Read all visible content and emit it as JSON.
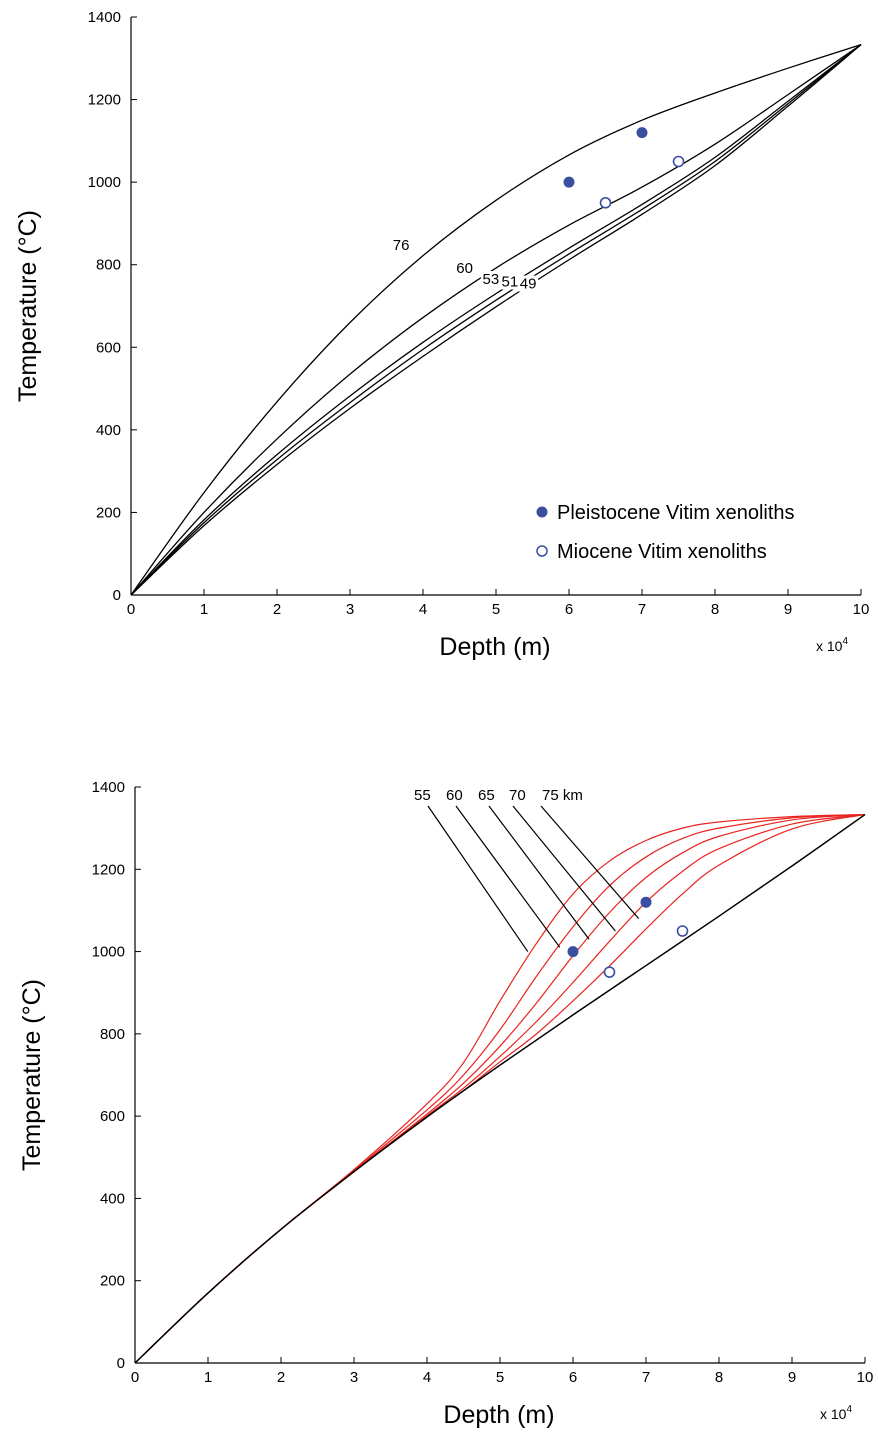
{
  "chart_data": [
    {
      "type": "line",
      "xlabel": "Depth (m)",
      "ylabel": "Temperature (°C)",
      "xlim": [
        0,
        100000
      ],
      "ylim": [
        0,
        1400
      ],
      "x_ticks": [
        "0",
        "1",
        "2",
        "3",
        "4",
        "5",
        "6",
        "7",
        "8",
        "9",
        "10"
      ],
      "y_ticks": [
        "0",
        "200",
        "400",
        "600",
        "800",
        "1000",
        "1200",
        "1400"
      ],
      "x_multiplier": {
        "base": "x 10",
        "exponent": "4"
      },
      "grid": false,
      "legend_position": "bottom-right",
      "series": [
        {
          "label": "76",
          "x": [
            0,
            10000,
            20000,
            30000,
            40000,
            50000,
            60000,
            70000,
            80000,
            90000,
            100000
          ],
          "y": [
            0,
            248,
            468,
            660,
            822,
            956,
            1066,
            1150,
            1216,
            1276,
            1333
          ]
        },
        {
          "label": "60",
          "x": [
            0,
            10000,
            20000,
            30000,
            40000,
            50000,
            60000,
            70000,
            80000,
            90000,
            100000
          ],
          "y": [
            0,
            200,
            378,
            535,
            672,
            792,
            896,
            988,
            1092,
            1212,
            1333
          ]
        },
        {
          "label": "53",
          "x": [
            0,
            10000,
            20000,
            30000,
            40000,
            50000,
            60000,
            70000,
            80000,
            90000,
            100000
          ],
          "y": [
            0,
            182,
            340,
            482,
            612,
            730,
            840,
            946,
            1060,
            1196,
            1333
          ]
        },
        {
          "label": "51",
          "x": [
            0,
            10000,
            20000,
            30000,
            40000,
            50000,
            60000,
            70000,
            80000,
            90000,
            100000
          ],
          "y": [
            0,
            175,
            328,
            466,
            595,
            714,
            826,
            934,
            1050,
            1190,
            1333
          ]
        },
        {
          "label": "49",
          "x": [
            0,
            10000,
            20000,
            30000,
            40000,
            50000,
            60000,
            70000,
            80000,
            90000,
            100000
          ],
          "y": [
            0,
            168,
            316,
            452,
            578,
            698,
            812,
            922,
            1040,
            1184,
            1333
          ]
        }
      ],
      "points": [
        {
          "name": "Pleistocene Vitim xenoliths",
          "style": "filled",
          "color": "#3b4fa0",
          "x": [
            60000,
            70000
          ],
          "y": [
            1000,
            1120
          ]
        },
        {
          "name": "Miocene Vitim xenoliths",
          "style": "open",
          "color": "#3b4fa0",
          "x": [
            65000,
            75000
          ],
          "y": [
            950,
            1050
          ]
        }
      ],
      "legend": [
        {
          "label": "Pleistocene Vitim xenoliths",
          "marker": "filled"
        },
        {
          "label": "Miocene Vitim xenoliths",
          "marker": "open"
        }
      ]
    },
    {
      "type": "line",
      "xlabel": "Depth (m)",
      "ylabel": "Temperature (°C)",
      "xlim": [
        0,
        100000
      ],
      "ylim": [
        0,
        1400
      ],
      "x_ticks": [
        "0",
        "1",
        "2",
        "3",
        "4",
        "5",
        "6",
        "7",
        "8",
        "9",
        "10"
      ],
      "y_ticks": [
        "0",
        "200",
        "400",
        "600",
        "800",
        "1000",
        "1200",
        "1400"
      ],
      "x_multiplier": {
        "base": "x 10",
        "exponent": "4"
      },
      "grid": false,
      "curve_labels": [
        "55",
        "60",
        "65",
        "70",
        "75 km"
      ],
      "colors": {
        "curves": "#e8231e",
        "baseline": "#000000"
      },
      "baseline": {
        "x": [
          0,
          10000,
          20000,
          30000,
          40000,
          50000,
          60000,
          70000,
          80000,
          90000,
          100000
        ],
        "y": [
          0,
          170,
          325,
          465,
          598,
          724,
          846,
          966,
          1086,
          1208,
          1333
        ]
      },
      "series": [
        {
          "label": "55",
          "x": [
            0,
            10000,
            20000,
            30000,
            40000,
            45000,
            50000,
            55000,
            60000,
            65000,
            70000,
            75000,
            80000,
            90000,
            100000
          ],
          "y": [
            0,
            170,
            325,
            470,
            630,
            730,
            880,
            1020,
            1140,
            1220,
            1270,
            1300,
            1315,
            1328,
            1333
          ]
        },
        {
          "label": "60",
          "x": [
            0,
            10000,
            20000,
            30000,
            40000,
            45000,
            50000,
            55000,
            60000,
            65000,
            70000,
            75000,
            80000,
            90000,
            100000
          ],
          "y": [
            0,
            170,
            325,
            468,
            615,
            700,
            810,
            940,
            1060,
            1160,
            1230,
            1275,
            1300,
            1325,
            1333
          ]
        },
        {
          "label": "65",
          "x": [
            0,
            10000,
            20000,
            30000,
            40000,
            45000,
            50000,
            55000,
            60000,
            65000,
            70000,
            75000,
            80000,
            90000,
            100000
          ],
          "y": [
            0,
            170,
            325,
            466,
            605,
            680,
            770,
            875,
            990,
            1095,
            1180,
            1240,
            1280,
            1320,
            1333
          ]
        },
        {
          "label": "70",
          "x": [
            0,
            10000,
            20000,
            30000,
            40000,
            45000,
            50000,
            55000,
            60000,
            65000,
            70000,
            75000,
            80000,
            90000,
            100000
          ],
          "y": [
            0,
            170,
            325,
            465,
            601,
            668,
            745,
            830,
            925,
            1025,
            1120,
            1195,
            1250,
            1310,
            1333
          ]
        },
        {
          "label": "75 km",
          "x": [
            0,
            10000,
            20000,
            30000,
            40000,
            45000,
            50000,
            55000,
            60000,
            65000,
            70000,
            75000,
            80000,
            90000,
            100000
          ],
          "y": [
            0,
            170,
            325,
            465,
            599,
            662,
            732,
            800,
            880,
            965,
            1055,
            1140,
            1210,
            1298,
            1333
          ]
        }
      ],
      "points": [
        {
          "name": "Pleistocene Vitim xenoliths",
          "style": "filled",
          "color": "#3b4fa0",
          "x": [
            60000,
            70000
          ],
          "y": [
            1000,
            1120
          ]
        },
        {
          "name": "Miocene Vitim xenoliths",
          "style": "open",
          "color": "#3b4fa0",
          "x": [
            65000,
            75000
          ],
          "y": [
            950,
            1050
          ]
        }
      ]
    }
  ]
}
